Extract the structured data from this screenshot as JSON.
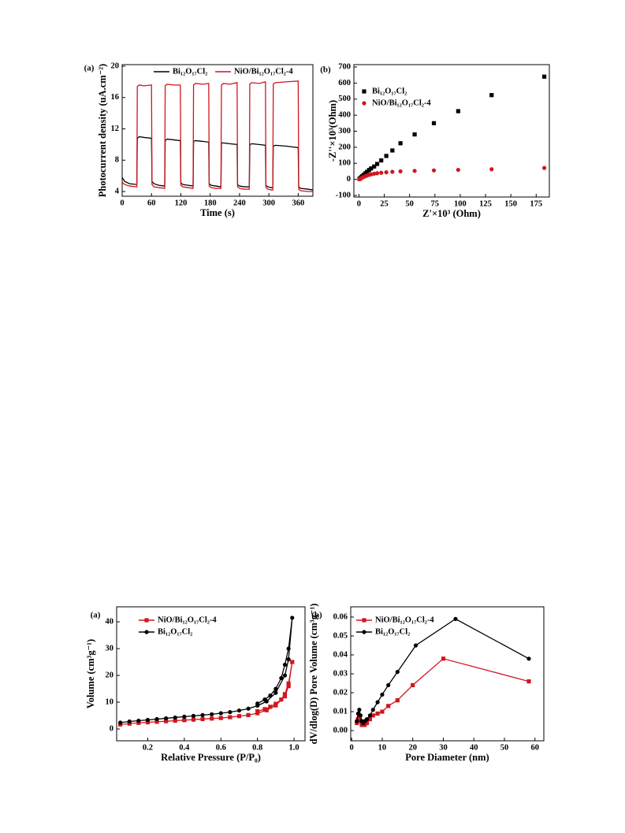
{
  "chart_data": [
    {
      "type": "line",
      "panel_label": "(a)",
      "xlabel": "Time (s)",
      "ylabel": "Photocurrent density (uA.cm⁻²)",
      "xlim": [
        0,
        390
      ],
      "xticks": [
        0,
        60,
        120,
        180,
        240,
        300,
        360
      ],
      "ylim": [
        3.4,
        20.2
      ],
      "yticks": [
        4,
        8,
        12,
        16,
        20
      ],
      "legend": "top",
      "x": [
        0,
        5,
        15,
        30,
        31,
        35,
        45,
        60,
        61,
        65,
        75,
        87,
        88,
        92,
        105,
        119,
        120,
        124,
        135,
        145,
        146,
        150,
        165,
        177,
        178,
        182,
        192,
        202,
        203,
        207,
        220,
        235,
        236,
        240,
        250,
        260,
        261,
        265,
        280,
        293,
        294,
        298,
        305,
        308,
        309,
        313,
        335,
        360,
        361,
        365,
        380,
        390
      ],
      "series": [
        {
          "name": "Bi₁₂O₁₇Cl₂",
          "color": "#000000",
          "values": [
            5.8,
            5.3,
            5.0,
            4.9,
            10.8,
            11.0,
            10.9,
            10.8,
            5.3,
            5.0,
            4.8,
            4.7,
            10.5,
            10.7,
            10.6,
            10.5,
            5.1,
            4.9,
            4.8,
            4.7,
            10.4,
            10.5,
            10.4,
            10.3,
            5.0,
            4.8,
            4.7,
            4.6,
            10.2,
            10.2,
            10.1,
            10.0,
            4.9,
            4.7,
            4.6,
            4.6,
            10.0,
            10.1,
            10.0,
            9.9,
            4.8,
            4.6,
            4.5,
            4.5,
            9.8,
            9.9,
            9.8,
            9.6,
            4.6,
            4.4,
            4.3,
            4.2
          ]
        },
        {
          "name": "NiO/Bi₁₂O₁₇Cl₂-4",
          "color": "#d0161e",
          "values": [
            5.2,
            4.9,
            4.7,
            4.6,
            17.4,
            17.6,
            17.5,
            17.6,
            4.9,
            4.6,
            4.5,
            4.4,
            17.5,
            17.7,
            17.6,
            17.6,
            4.8,
            4.6,
            4.5,
            4.4,
            17.6,
            17.8,
            17.7,
            17.8,
            4.7,
            4.5,
            4.4,
            4.4,
            17.6,
            17.8,
            17.7,
            17.9,
            4.6,
            4.4,
            4.3,
            4.3,
            17.7,
            17.9,
            17.8,
            18.0,
            4.5,
            4.3,
            4.2,
            4.2,
            17.7,
            17.9,
            18.0,
            18.1,
            4.3,
            4.1,
            4.0,
            4.0
          ]
        }
      ]
    },
    {
      "type": "scatter",
      "panel_label": "(b)",
      "xlabel": "Z'×10³ (Ohm)",
      "ylabel": "-Z''×10³(Ohm)",
      "xlim": [
        -5,
        188
      ],
      "xticks": [
        0,
        25,
        50,
        75,
        100,
        125,
        150,
        175
      ],
      "ylim": [
        -110,
        715
      ],
      "yticks": [
        -100,
        0,
        100,
        200,
        300,
        400,
        500,
        600,
        700
      ],
      "legend": "upper left",
      "series": [
        {
          "name": "Bi₁₂O₁₇Cl₂",
          "color": "#000000",
          "marker": "square",
          "x": [
            0.5,
            1.5,
            2.5,
            3.5,
            5,
            6.5,
            8,
            10,
            12,
            15,
            18,
            22,
            27,
            33,
            41,
            55,
            74,
            98,
            131,
            183
          ],
          "values": [
            3,
            8,
            14,
            21,
            29,
            38,
            47,
            58,
            68,
            80,
            96,
            118,
            146,
            180,
            225,
            280,
            350,
            425,
            525,
            640
          ]
        },
        {
          "name": "NiO/Bi₁₂O₁₇Cl₂-4",
          "color": "#d0161e",
          "marker": "circle",
          "x": [
            0.5,
            1.5,
            2.5,
            3.5,
            5,
            6.5,
            8,
            10,
            12,
            15,
            18,
            22,
            27,
            33,
            41,
            55,
            74,
            98,
            131,
            183
          ],
          "values": [
            1,
            4,
            8,
            12,
            16,
            20,
            24,
            28,
            31,
            35,
            38,
            41,
            44,
            47,
            50,
            53,
            56,
            59,
            63,
            71
          ]
        }
      ]
    },
    {
      "type": "line",
      "panel_label": "(a)",
      "xlabel": "Relative Pressure (P/P₀)",
      "ylabel": "Volume (cm³g⁻¹)",
      "xlim": [
        0.03,
        1.06
      ],
      "xticks": [
        0.2,
        0.4,
        0.6,
        0.8,
        {
          "value": 1.0,
          "label": "1.0"
        }
      ],
      "ylim": [
        -4.4,
        45.6
      ],
      "yticks": [
        0,
        10,
        20,
        30,
        40
      ],
      "legend": "upper left",
      "series": [
        {
          "name": "NiO/Bi₁₂O₁₇Cl₂-4",
          "color": "#d0161e",
          "marker": "square",
          "x": [
            0.05,
            0.1,
            0.15,
            0.2,
            0.25,
            0.3,
            0.35,
            0.4,
            0.45,
            0.5,
            0.55,
            0.6,
            0.65,
            0.7,
            0.75,
            0.8,
            0.85,
            0.9,
            0.95,
            0.97,
            0.99,
            0.97,
            0.95,
            0.93,
            0.9,
            0.87,
            0.84,
            0.8
          ],
          "values": [
            1.7,
            2.0,
            2.3,
            2.5,
            2.7,
            2.9,
            3.1,
            3.3,
            3.5,
            3.7,
            3.9,
            4.1,
            4.4,
            4.8,
            5.2,
            5.9,
            7.0,
            8.8,
            12.2,
            16,
            25,
            17,
            13,
            11,
            9.4,
            8.3,
            7.4,
            6.6
          ]
        },
        {
          "name": "Bi₁₂O₁₇Cl₂",
          "color": "#000000",
          "marker": "circle",
          "x": [
            0.05,
            0.1,
            0.15,
            0.2,
            0.25,
            0.3,
            0.35,
            0.4,
            0.45,
            0.5,
            0.55,
            0.6,
            0.65,
            0.7,
            0.75,
            0.8,
            0.85,
            0.9,
            0.95,
            0.97,
            0.99,
            0.97,
            0.95,
            0.93,
            0.9,
            0.87,
            0.84,
            0.8
          ],
          "values": [
            2.4,
            2.8,
            3.1,
            3.4,
            3.7,
            4.0,
            4.3,
            4.6,
            4.9,
            5.2,
            5.5,
            5.9,
            6.3,
            6.9,
            7.6,
            8.7,
            10.3,
            13.5,
            20,
            26,
            41.5,
            30,
            24,
            19,
            15,
            12.5,
            11,
            9.5
          ]
        }
      ]
    },
    {
      "type": "line",
      "panel_label": "(b)",
      "xlabel": "Pore Diameter (nm)",
      "ylabel": "dV/dlog(D) Pore Volume (cm³g⁻¹)",
      "xlim": [
        -0.3,
        62.9
      ],
      "xticks": [
        0,
        10,
        20,
        30,
        40,
        50,
        60
      ],
      "ylim": [
        -0.0054,
        0.0654
      ],
      "yticks": [
        {
          "value": 0,
          "label": "0.00"
        },
        0.01,
        0.02,
        0.03,
        0.04,
        0.05,
        0.06
      ],
      "legend": "upper left",
      "series": [
        {
          "name": "NiO/Bi₁₂O₁₇Cl₂-4",
          "color": "#d0161e",
          "marker": "square",
          "x": [
            1.7,
            2.1,
            2.5,
            2.9,
            3.3,
            3.8,
            4.3,
            5,
            6,
            7,
            8.5,
            10,
            12,
            15,
            20,
            30,
            58
          ],
          "values": [
            0.004,
            0.006,
            0.007,
            0.005,
            0.003,
            0.003,
            0.003,
            0.004,
            0.006,
            0.008,
            0.009,
            0.01,
            0.013,
            0.016,
            0.024,
            0.038,
            0.026
          ]
        },
        {
          "name": "Bi₁₂O₁₇Cl₂",
          "color": "#000000",
          "marker": "circle",
          "x": [
            1.7,
            2.1,
            2.5,
            2.9,
            3.3,
            3.8,
            4.3,
            5,
            6,
            7,
            8.5,
            10,
            12,
            15,
            21,
            34,
            58
          ],
          "values": [
            0.005,
            0.009,
            0.011,
            0.008,
            0.005,
            0.004,
            0.005,
            0.006,
            0.008,
            0.011,
            0.015,
            0.019,
            0.024,
            0.031,
            0.045,
            0.059,
            0.038
          ]
        }
      ]
    }
  ]
}
